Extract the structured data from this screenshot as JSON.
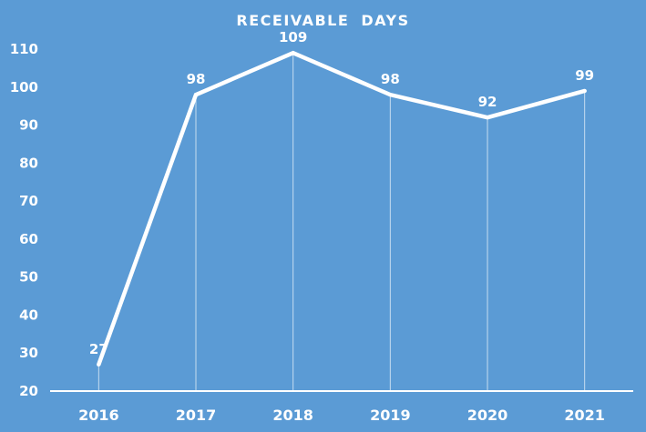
{
  "chart_data": {
    "type": "line",
    "title": "RECEIVABLE DAYS",
    "categories": [
      "2016",
      "2017",
      "2018",
      "2019",
      "2020",
      "2021"
    ],
    "series": [
      {
        "name": "Receivable Days",
        "values": [
          27,
          98,
          109,
          98,
          92,
          99
        ],
        "data_labels": [
          "27",
          "98",
          "109",
          "98",
          "92",
          "99"
        ]
      }
    ],
    "xlabel": "",
    "ylabel": "",
    "ylim": [
      20,
      110
    ],
    "yticks": [
      20,
      30,
      40,
      50,
      60,
      70,
      80,
      90,
      100,
      110
    ],
    "grid": false,
    "legend": false,
    "drop_lines": true,
    "layout": {
      "title_position": "top-center",
      "yaxis_side": "left"
    },
    "colors": {
      "background": "#5B9BD5",
      "line": "#FFFFFF",
      "axis": "#FFFFFF",
      "drop_line": "#FFFFFF",
      "text": "#FFFFFF"
    }
  }
}
